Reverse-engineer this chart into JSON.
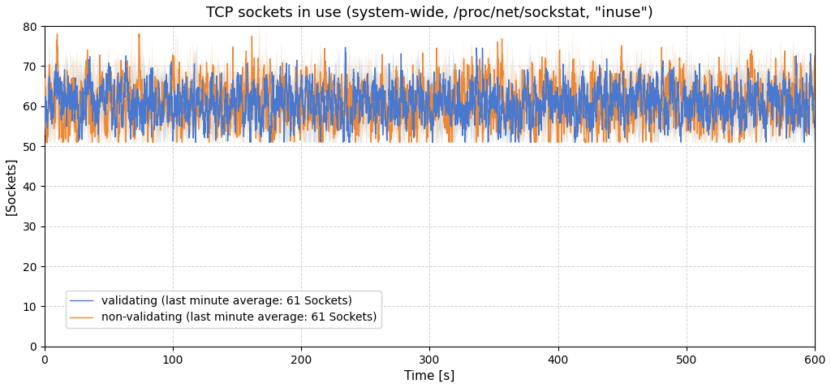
{
  "title": "TCP sockets in use (system-wide, /proc/net/sockstat, \"inuse\")",
  "xlabel": "Time [s]",
  "ylabel": "[Sockets]",
  "xlim": [
    0,
    600
  ],
  "ylim": [
    0,
    80
  ],
  "yticks": [
    0,
    10,
    20,
    30,
    40,
    50,
    60,
    70,
    80
  ],
  "xticks": [
    0,
    100,
    200,
    300,
    400,
    500,
    600
  ],
  "legend_labels": [
    "validating (last minute average: 61 Sockets)",
    "non-validating (last minute average: 61 Sockets)"
  ],
  "line_color_validating": "#4878cf",
  "line_color_nonvalidating": "#ee8833",
  "band_color_validating": "#b8d0ea",
  "band_color_nonvalidating": "#f0c8a0",
  "title_fontsize": 13,
  "label_fontsize": 11,
  "tick_fontsize": 10,
  "legend_fontsize": 10,
  "line_width": 1.0,
  "background_color": "#ffffff",
  "grid_color": "#c8c8c8",
  "grid_linestyle": "--",
  "grid_alpha": 0.8
}
